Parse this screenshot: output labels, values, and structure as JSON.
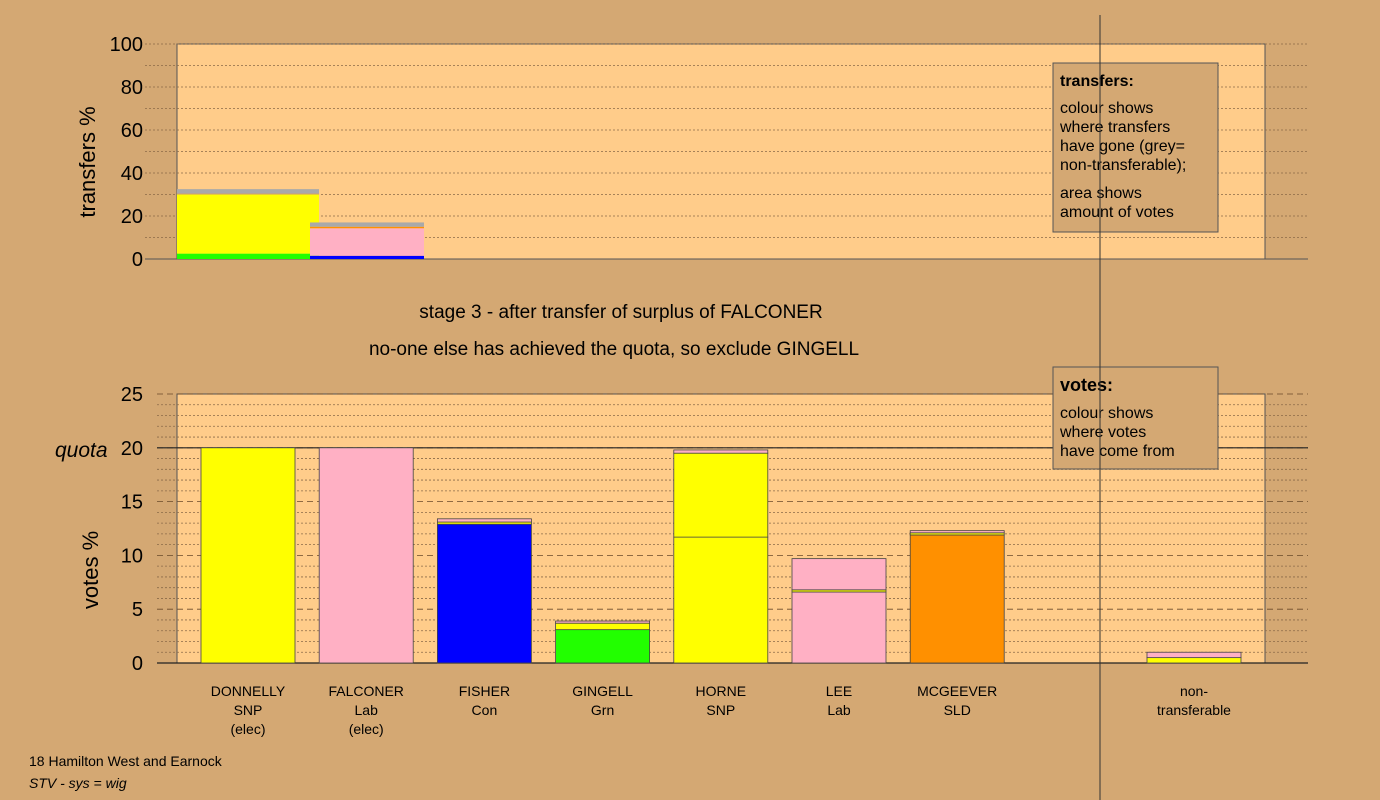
{
  "chart_data": [
    {
      "type": "bar",
      "subtype": "stacked",
      "ylabel": "transfers %",
      "ylim": [
        0,
        100
      ],
      "yticks": [
        0,
        20,
        40,
        60,
        80,
        100
      ],
      "stages": [
        {
          "segments": [
            {
              "color": "#22ff00",
              "value": 2.5
            },
            {
              "color": "#ffff00",
              "value": 27.5
            },
            {
              "color": "#c89a72",
              "value": 0.5
            },
            {
              "color": "#a9a9a9",
              "value": 2
            }
          ]
        },
        {
          "segments": [
            {
              "color": "#0000ff",
              "value": 1.5
            },
            {
              "color": "#ffb0c4",
              "value": 12.8
            },
            {
              "color": "#ff9000",
              "value": 0.7
            },
            {
              "color": "#a9a9a9",
              "value": 2
            }
          ]
        }
      ],
      "legend": {
        "title": "transfers:",
        "lines1": [
          "colour shows",
          "where transfers",
          "have gone (grey=",
          "non-transferable);"
        ],
        "lines2": [
          "area shows",
          "amount of votes"
        ]
      },
      "grid": true
    },
    {
      "type": "bar",
      "subtype": "stacked",
      "ylabel": "votes %",
      "ylim": [
        0,
        25
      ],
      "yticks": [
        0,
        5,
        10,
        15,
        20,
        25
      ],
      "quota": 20,
      "quota_label": "quota",
      "title_line1": "stage 3 - after transfer of surplus of FALCONER",
      "title_line2": "no-one else has achieved the quota, so exclude GINGELL",
      "candidates": [
        {
          "name": "DONNELLY",
          "party": "SNP",
          "note": "(elec)",
          "segments": [
            {
              "color": "#ffff00",
              "value": 20
            }
          ]
        },
        {
          "name": "FALCONER",
          "party": "Lab",
          "note": "(elec)",
          "segments": [
            {
              "color": "#ffb0c4",
              "value": 20
            }
          ]
        },
        {
          "name": "FISHER",
          "party": "Con",
          "note": "",
          "segments": [
            {
              "color": "#0000ff",
              "value": 12.9
            },
            {
              "color": "#ffff00",
              "value": 0.2
            },
            {
              "color": "#ffb0c4",
              "value": 0.3
            }
          ]
        },
        {
          "name": "GINGELL",
          "party": "Grn",
          "note": "",
          "segments": [
            {
              "color": "#22ff00",
              "value": 3.1
            },
            {
              "color": "#ffff00",
              "value": 0.6
            },
            {
              "color": "#ffb0c4",
              "value": 0.2
            }
          ]
        },
        {
          "name": "HORNE",
          "party": "SNP",
          "note": "",
          "segments": [
            {
              "color": "#ffff00",
              "value": 11.7
            },
            {
              "color": "#ffff00",
              "value": 7.8
            },
            {
              "color": "#ffb0c4",
              "value": 0.3
            }
          ]
        },
        {
          "name": "LEE",
          "party": "Lab",
          "note": "",
          "segments": [
            {
              "color": "#ffb0c4",
              "value": 6.6
            },
            {
              "color": "#ffff00",
              "value": 0.2
            },
            {
              "color": "#ffb0c4",
              "value": 2.9
            }
          ]
        },
        {
          "name": "MCGEEVER",
          "party": "SLD",
          "note": "",
          "segments": [
            {
              "color": "#ff9000",
              "value": 11.9
            },
            {
              "color": "#ffff00",
              "value": 0.2
            },
            {
              "color": "#ffb0c4",
              "value": 0.2
            }
          ]
        }
      ],
      "nontransferable": {
        "line1": "non-",
        "line2": "transferable",
        "segments": [
          {
            "color": "#ffff00",
            "value": 0.5
          },
          {
            "color": "#ffb0c4",
            "value": 0.5
          }
        ]
      },
      "legend": {
        "title": "votes:",
        "lines": [
          "colour shows",
          "where votes",
          "have come from"
        ]
      },
      "grid": true
    }
  ],
  "footer": {
    "line1": "18 Hamilton West and Earnock",
    "line2": "STV - sys = wig"
  }
}
